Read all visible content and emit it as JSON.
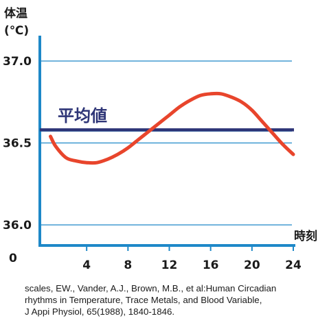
{
  "chart_data": {
    "type": "line",
    "ylabel": "体温",
    "yunit": "(℃)",
    "xlabel": "時刻",
    "x_origin_label": "0",
    "ylim": [
      36.0,
      37.0
    ],
    "xlim": [
      0,
      24
    ],
    "y_ticks": [
      "37.0",
      "36.5",
      "36.0"
    ],
    "x_ticks": [
      "4",
      "8",
      "12",
      "16",
      "20",
      "24"
    ],
    "grid": true,
    "mean": {
      "label": "平均値",
      "value": 36.58
    },
    "series": [
      {
        "x": [
          0.5,
          1,
          2,
          3,
          4,
          5,
          6,
          7,
          8,
          9,
          10,
          11,
          12,
          13,
          14,
          15,
          16,
          17,
          18,
          19,
          20,
          21,
          22,
          23,
          24
        ],
        "y": [
          36.54,
          36.48,
          36.41,
          36.39,
          36.38,
          36.38,
          36.4,
          36.43,
          36.47,
          36.52,
          36.57,
          36.62,
          36.67,
          36.72,
          36.76,
          36.79,
          36.8,
          36.8,
          36.78,
          36.75,
          36.7,
          36.63,
          36.56,
          36.49,
          36.43
        ]
      }
    ],
    "colors": {
      "axis": "#1e88c8",
      "grid": "#1e88c8",
      "curve": "#e8452c",
      "mean": "#2e3577"
    }
  },
  "citation": [
    "scales, EW., Vander, A.J., Brown, M.B., et al:Human Circadian",
    "rhythms in Temperature, Trace Metals, and Blood Variable,",
    "J Appi Physiol, 65(1988), 1840-1846."
  ]
}
